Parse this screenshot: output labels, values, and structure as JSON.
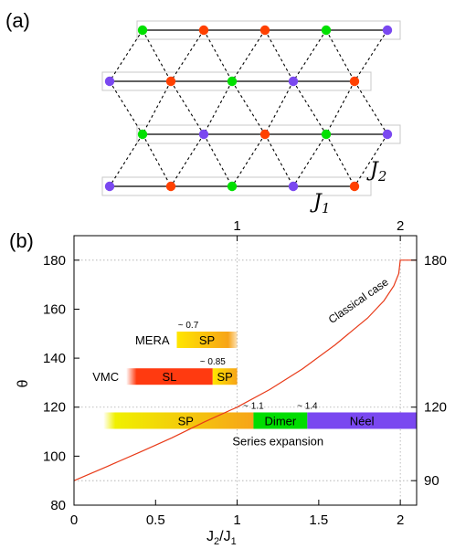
{
  "panel_a": {
    "label": "(a)",
    "j1_label": "J",
    "j1_sub": "1",
    "j2_label": "J",
    "j2_sub": "2",
    "colors": {
      "red": "#ff4000",
      "green": "#00e000",
      "purple": "#7a48f0"
    },
    "rows": [
      {
        "name": "row-1",
        "sites": [
          "green",
          "red",
          "red",
          "green",
          "purple"
        ]
      },
      {
        "name": "row-2",
        "sites": [
          "purple",
          "red",
          "green",
          "purple",
          "red"
        ]
      },
      {
        "name": "row-3",
        "sites": [
          "green",
          "purple",
          "red",
          "green",
          "purple"
        ]
      },
      {
        "name": "row-4",
        "sites": [
          "purple",
          "red",
          "green",
          "purple",
          "red"
        ]
      }
    ]
  },
  "panel_b": {
    "label": "(b)",
    "chart_data": {
      "type": "line",
      "xlabel": "J",
      "xlabel_sub1": "2",
      "xlabel_slash": "/J",
      "xlabel_sub2": "1",
      "ylabel": "θ",
      "xlim": [
        0,
        2.1
      ],
      "ylim": [
        80,
        190
      ],
      "x_ticks": [
        "0",
        "0.5",
        "1",
        "1.5",
        "2"
      ],
      "x_tick_values": [
        0,
        0.5,
        1,
        1.5,
        2
      ],
      "y_ticks": [
        "80",
        "100",
        "120",
        "140",
        "160",
        "180"
      ],
      "y_tick_values": [
        80,
        100,
        120,
        140,
        160,
        180
      ],
      "top_ticks": [
        "1",
        "2"
      ],
      "top_tick_values": [
        1,
        2
      ],
      "right_ticks": [
        "90",
        "120",
        "180"
      ],
      "right_tick_values": [
        90,
        120,
        180
      ],
      "grid": "dotted",
      "series": [
        {
          "name": "Classical case",
          "color": "#e83a18",
          "x": [
            0,
            0.2,
            0.4,
            0.5,
            0.6,
            0.8,
            1.0,
            1.2,
            1.4,
            1.6,
            1.8,
            1.9,
            1.96,
            1.99,
            2.0,
            2.1
          ],
          "y": [
            90,
            95.7,
            101.5,
            104.5,
            107.5,
            114,
            120,
            127.2,
            135.6,
            145.4,
            156.4,
            163.5,
            169.5,
            174.5,
            180,
            180
          ]
        }
      ],
      "bars": [
        {
          "name": "MERA",
          "y": 147.5,
          "segments": [
            {
              "label": "SP",
              "x0": 0.63,
              "x1": 1.0,
              "colors": [
                "#ffe600",
                "#f7a418"
              ]
            }
          ],
          "annotations": [
            {
              "text": "~ 0.7",
              "x": 0.7
            }
          ]
        },
        {
          "name": "VMC",
          "y": 132.5,
          "segments": [
            {
              "label": "SL",
              "x0": 0.32,
              "x1": 0.85,
              "colors": [
                "#ff3a10",
                "#ff3a10"
              ]
            },
            {
              "label": "SP",
              "x0": 0.85,
              "x1": 1.0,
              "colors": [
                "#ffe600",
                "#f7a418"
              ]
            }
          ],
          "annotations": [
            {
              "text": "~ 0.85",
              "x": 0.85
            }
          ]
        },
        {
          "name": "Series expansion",
          "y": 114.5,
          "segments": [
            {
              "label": "SP",
              "x0": 0.18,
              "x1": 1.1,
              "colors": [
                "#f0f000",
                "#f7a418"
              ]
            },
            {
              "label": "Dimer",
              "x0": 1.1,
              "x1": 1.43,
              "colors": [
                "#00dd00",
                "#00dd00"
              ]
            },
            {
              "label": "Néel",
              "x0": 1.43,
              "x1": 2.1,
              "colors": [
                "#7a48f0",
                "#7a48f0"
              ]
            }
          ],
          "annotations": [
            {
              "text": "~ 1.1",
              "x": 1.1
            },
            {
              "text": "~ 1.4",
              "x": 1.43
            }
          ]
        }
      ]
    }
  }
}
